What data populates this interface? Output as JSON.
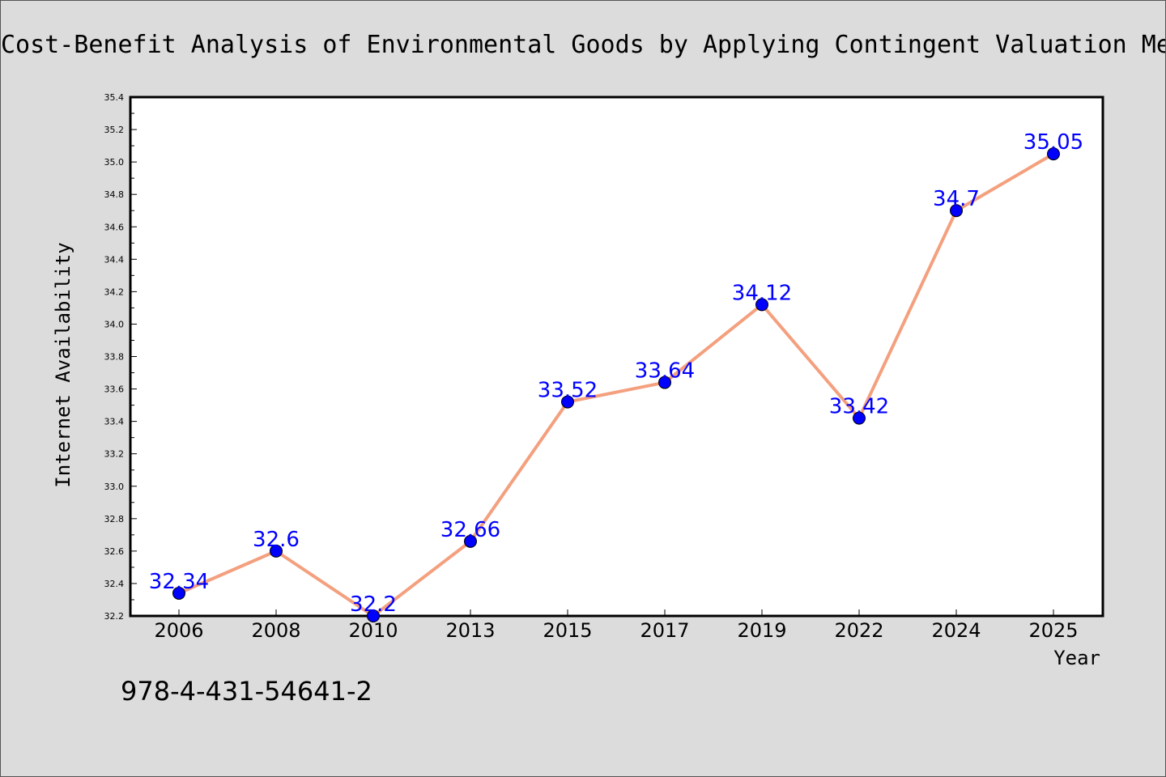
{
  "chart_data": {
    "type": "line",
    "title": "Cost-Benefit Analysis of Environmental Goods by Applying Contingent Valuation Me",
    "xlabel": "Year",
    "ylabel": "Internet Availability",
    "categories": [
      "2006",
      "2008",
      "2010",
      "2013",
      "2015",
      "2017",
      "2019",
      "2022",
      "2024",
      "2025"
    ],
    "series": [
      {
        "values": [
          32.34,
          32.6,
          32.2,
          32.66,
          33.52,
          33.64,
          34.12,
          33.42,
          34.7,
          35.05
        ],
        "data_labels": [
          "32.34",
          "32.6",
          "32.2",
          "32.66",
          "33.52",
          "33.64",
          "34.12",
          "33.42",
          "34.7",
          "35.05"
        ],
        "line_color": "#f4a07e",
        "marker_color": "#0000ff"
      }
    ],
    "ylim": [
      32.2,
      35.4
    ],
    "yticks": [
      "32.2",
      "32.4",
      "32.6",
      "32.8",
      "33.0",
      "33.2",
      "33.4",
      "33.6",
      "33.8",
      "34.0",
      "34.2",
      "34.4",
      "34.6",
      "34.8",
      "35.0",
      "35.2",
      "35.4"
    ],
    "grid": false,
    "legend": "none"
  },
  "footer": {
    "isbn": "978-4-431-54641-2"
  }
}
